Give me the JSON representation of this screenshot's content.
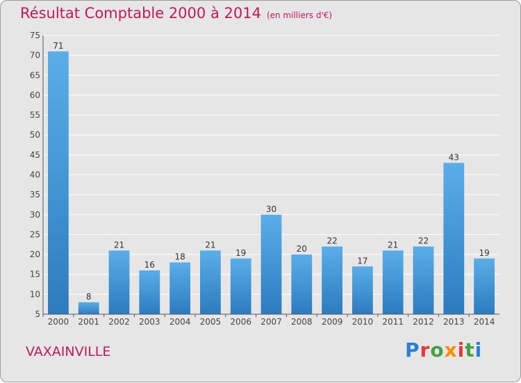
{
  "header": {
    "title": "Résultat Comptable 2000 à 2014",
    "unit": "(en milliers d'€)"
  },
  "footer": {
    "commune": "VAXAINVILLE",
    "logo": "Proxiti"
  },
  "colors": {
    "title": "#c2185b",
    "bar_top": "#5aaee8",
    "bar_bottom": "#2c7bbf",
    "background": "#e6e6e6"
  },
  "chart_data": {
    "type": "bar",
    "title": "Résultat Comptable 2000 à 2014",
    "subtitle": "(en milliers d'€)",
    "xlabel": "",
    "ylabel": "",
    "categories": [
      "2000",
      "2001",
      "2002",
      "2003",
      "2004",
      "2005",
      "2006",
      "2007",
      "2008",
      "2009",
      "2010",
      "2011",
      "2012",
      "2013",
      "2014"
    ],
    "values": [
      71,
      8,
      21,
      16,
      18,
      21,
      19,
      30,
      20,
      22,
      17,
      21,
      22,
      43,
      19
    ],
    "ylim": [
      5,
      75
    ],
    "yticks": [
      5,
      10,
      15,
      20,
      25,
      30,
      35,
      40,
      45,
      50,
      55,
      60,
      65,
      70,
      75
    ],
    "grid": true
  }
}
